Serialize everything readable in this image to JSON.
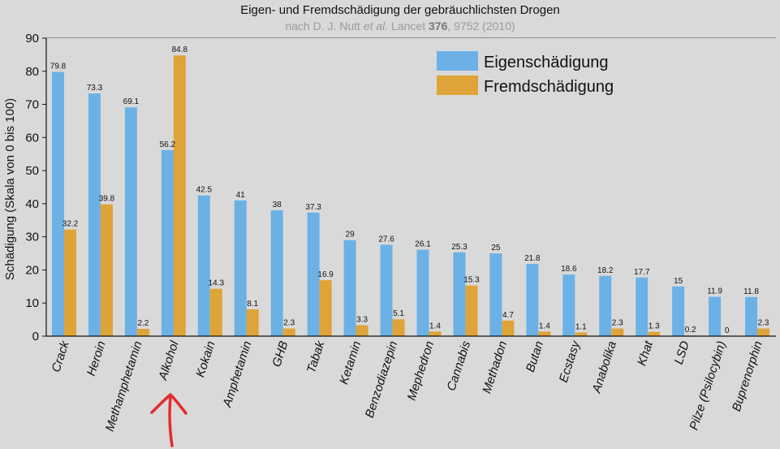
{
  "chart_data": {
    "type": "bar",
    "title": "Eigen- und Fremdschädigung der gebräuchlichsten Drogen",
    "subtitle": {
      "prefix": "nach D. J. Nutt ",
      "italic": "et al.",
      "middle": " Lancet ",
      "bold": "376",
      "suffix": ", 9752 (2010)"
    },
    "ylabel": "Schädigung (Skala von 0 bis 100)",
    "xlabel": "",
    "ylim": [
      0,
      90
    ],
    "yticks": [
      0,
      10,
      20,
      30,
      40,
      50,
      60,
      70,
      80,
      90
    ],
    "grid": true,
    "legend_position": "top-right",
    "categories": [
      "Crack",
      "Heroin",
      "Methamphetamin",
      "Alkohol",
      "Kokain",
      "Amphetamin",
      "GHB",
      "Tabak",
      "Ketamin",
      "Benzodiazepin",
      "Mephedron",
      "Cannabis",
      "Methadon",
      "Butan",
      "Ecstasy",
      "Anabolika",
      "Khat",
      "LSD",
      "Pilze (Psilocybin)",
      "Buprenorphin"
    ],
    "series": [
      {
        "name": "Eigenschädigung",
        "color": "#6cb1e6",
        "values": [
          79.8,
          73.3,
          69.1,
          56.2,
          42.5,
          41,
          38,
          37.3,
          29,
          27.6,
          26.1,
          25.3,
          25,
          21.8,
          18.6,
          18.2,
          17.7,
          15,
          11.9,
          11.8
        ]
      },
      {
        "name": "Fremdschädigung",
        "color": "#dfa437",
        "values": [
          32.2,
          39.8,
          2.2,
          84.8,
          14.3,
          8.1,
          2.3,
          16.9,
          3.3,
          5.1,
          1.4,
          15.3,
          4.7,
          1.4,
          1.1,
          2.3,
          1.3,
          0.2,
          0,
          2.3
        ]
      }
    ]
  },
  "annotation": {
    "name": "red-hand-drawn-arrow",
    "color": "#e52b2b",
    "target_category": "Alkohol"
  }
}
